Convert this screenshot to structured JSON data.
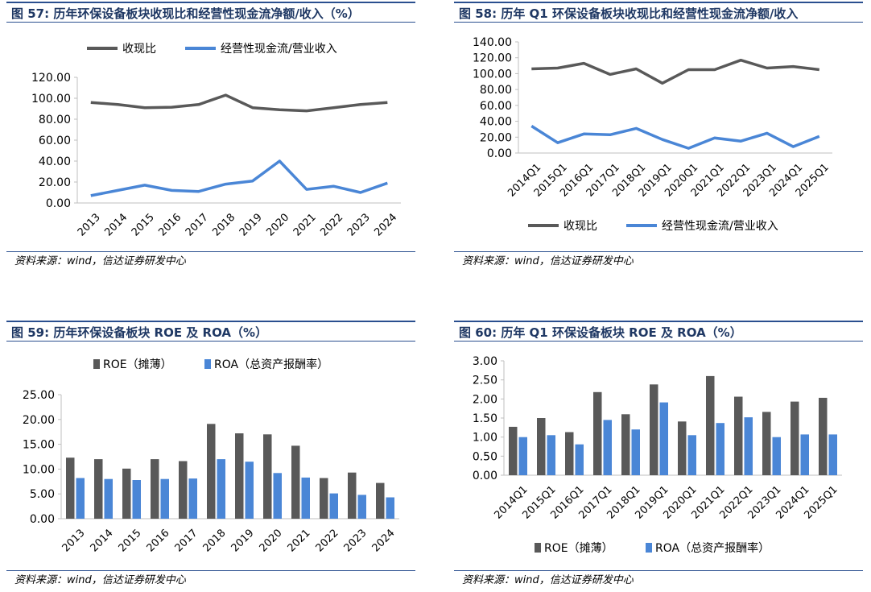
{
  "panels": [
    {
      "title": "图  57:  历年环保设备板块收现比和经营性现金流净额/收入（%）",
      "source": "资料来源：wind，信达证券研发中心",
      "chart_data": {
        "type": "line",
        "categories": [
          "2013",
          "2014",
          "2015",
          "2016",
          "2017",
          "2018",
          "2019",
          "2020",
          "2021",
          "2022",
          "2023",
          "2024"
        ],
        "series": [
          {
            "name": "收现比",
            "color": "#595959",
            "values": [
              96,
              94,
              91,
              91.5,
              94,
              103,
              91,
              89,
              88,
              91,
              94,
              96
            ]
          },
          {
            "name": "经营性现金流/营业收入",
            "color": "#4a86d6",
            "values": [
              7,
              12,
              17,
              12,
              11,
              18,
              21,
              40,
              13,
              16,
              10,
              19
            ]
          }
        ],
        "y_ticks": [
          "0.00",
          "20.00",
          "40.00",
          "60.00",
          "80.00",
          "100.00",
          "120.00"
        ],
        "ylim": [
          0,
          120
        ],
        "legend": "top"
      }
    },
    {
      "title": "图  58:  历年 Q1 环保设备板块收现比和经营性现金流净额/收入",
      "source": "资料来源：wind，信达证券研发中心",
      "chart_data": {
        "type": "line",
        "categories": [
          "2014Q1",
          "2015Q1",
          "2016Q1",
          "2017Q1",
          "2018Q1",
          "2019Q1",
          "2020Q1",
          "2021Q1",
          "2022Q1",
          "2023Q1",
          "2024Q1",
          "2025Q1"
        ],
        "series": [
          {
            "name": "收现比",
            "color": "#595959",
            "values": [
              106,
              107,
              113,
              99,
              106,
              88,
              105,
              105,
              117,
              107,
              109,
              105
            ]
          },
          {
            "name": "经营性现金流/营业收入",
            "color": "#4a86d6",
            "values": [
              34,
              13,
              24,
              23,
              31,
              17,
              6,
              19,
              15,
              25,
              8,
              21
            ]
          }
        ],
        "y_ticks": [
          "0.00",
          "20.00",
          "40.00",
          "60.00",
          "80.00",
          "100.00",
          "120.00",
          "140.00"
        ],
        "ylim": [
          0,
          140
        ],
        "legend": "bottom"
      }
    },
    {
      "title": "图  59:  历年环保设备板块 ROE 及 ROA（%）",
      "source": "资料来源：wind，信达证券研发中心",
      "chart_data": {
        "type": "bar",
        "categories": [
          "2013",
          "2014",
          "2015",
          "2016",
          "2017",
          "2018",
          "2019",
          "2020",
          "2021",
          "2022",
          "2023",
          "2024"
        ],
        "series": [
          {
            "name": "ROE（摊薄）",
            "color": "#595959",
            "values": [
              12.3,
              12,
              10.1,
              12,
              11.6,
              19.1,
              17.2,
              17,
              14.7,
              8.2,
              9.3,
              7.2
            ]
          },
          {
            "name": "ROA（总资产报酬率）",
            "color": "#4a86d6",
            "values": [
              8.2,
              8,
              7.8,
              8,
              8.1,
              12,
              11.5,
              9.2,
              8.3,
              5.1,
              4.8,
              4.3
            ]
          }
        ],
        "y_ticks": [
          "0.00",
          "5.00",
          "10.00",
          "15.00",
          "20.00",
          "25.00"
        ],
        "ylim": [
          0,
          25
        ],
        "legend": "top"
      }
    },
    {
      "title": "图  60:  历年 Q1 环保设备板块 ROE 及 ROA（%）",
      "source": "资料来源：wind，信达证券研发中心",
      "chart_data": {
        "type": "bar",
        "categories": [
          "2014Q1",
          "2015Q1",
          "2016Q1",
          "2017Q1",
          "2018Q1",
          "2019Q1",
          "2020Q1",
          "2021Q1",
          "2022Q1",
          "2023Q1",
          "2024Q1",
          "2025Q1"
        ],
        "series": [
          {
            "name": "ROE（摊薄）",
            "color": "#595959",
            "values": [
              1.27,
              1.5,
              1.13,
              2.18,
              1.6,
              2.38,
              1.41,
              2.6,
              2.06,
              1.66,
              1.93,
              2.03
            ]
          },
          {
            "name": "ROA（总资产报酬率）",
            "color": "#4a86d6",
            "values": [
              1,
              1.05,
              0.81,
              1.45,
              1.2,
              1.91,
              1.05,
              1.37,
              1.52,
              1,
              1.07,
              1.07
            ]
          }
        ],
        "y_ticks": [
          "0.00",
          "0.50",
          "1.00",
          "1.50",
          "2.00",
          "2.50",
          "3.00"
        ],
        "ylim": [
          0,
          3
        ],
        "legend": "bottom"
      }
    }
  ]
}
